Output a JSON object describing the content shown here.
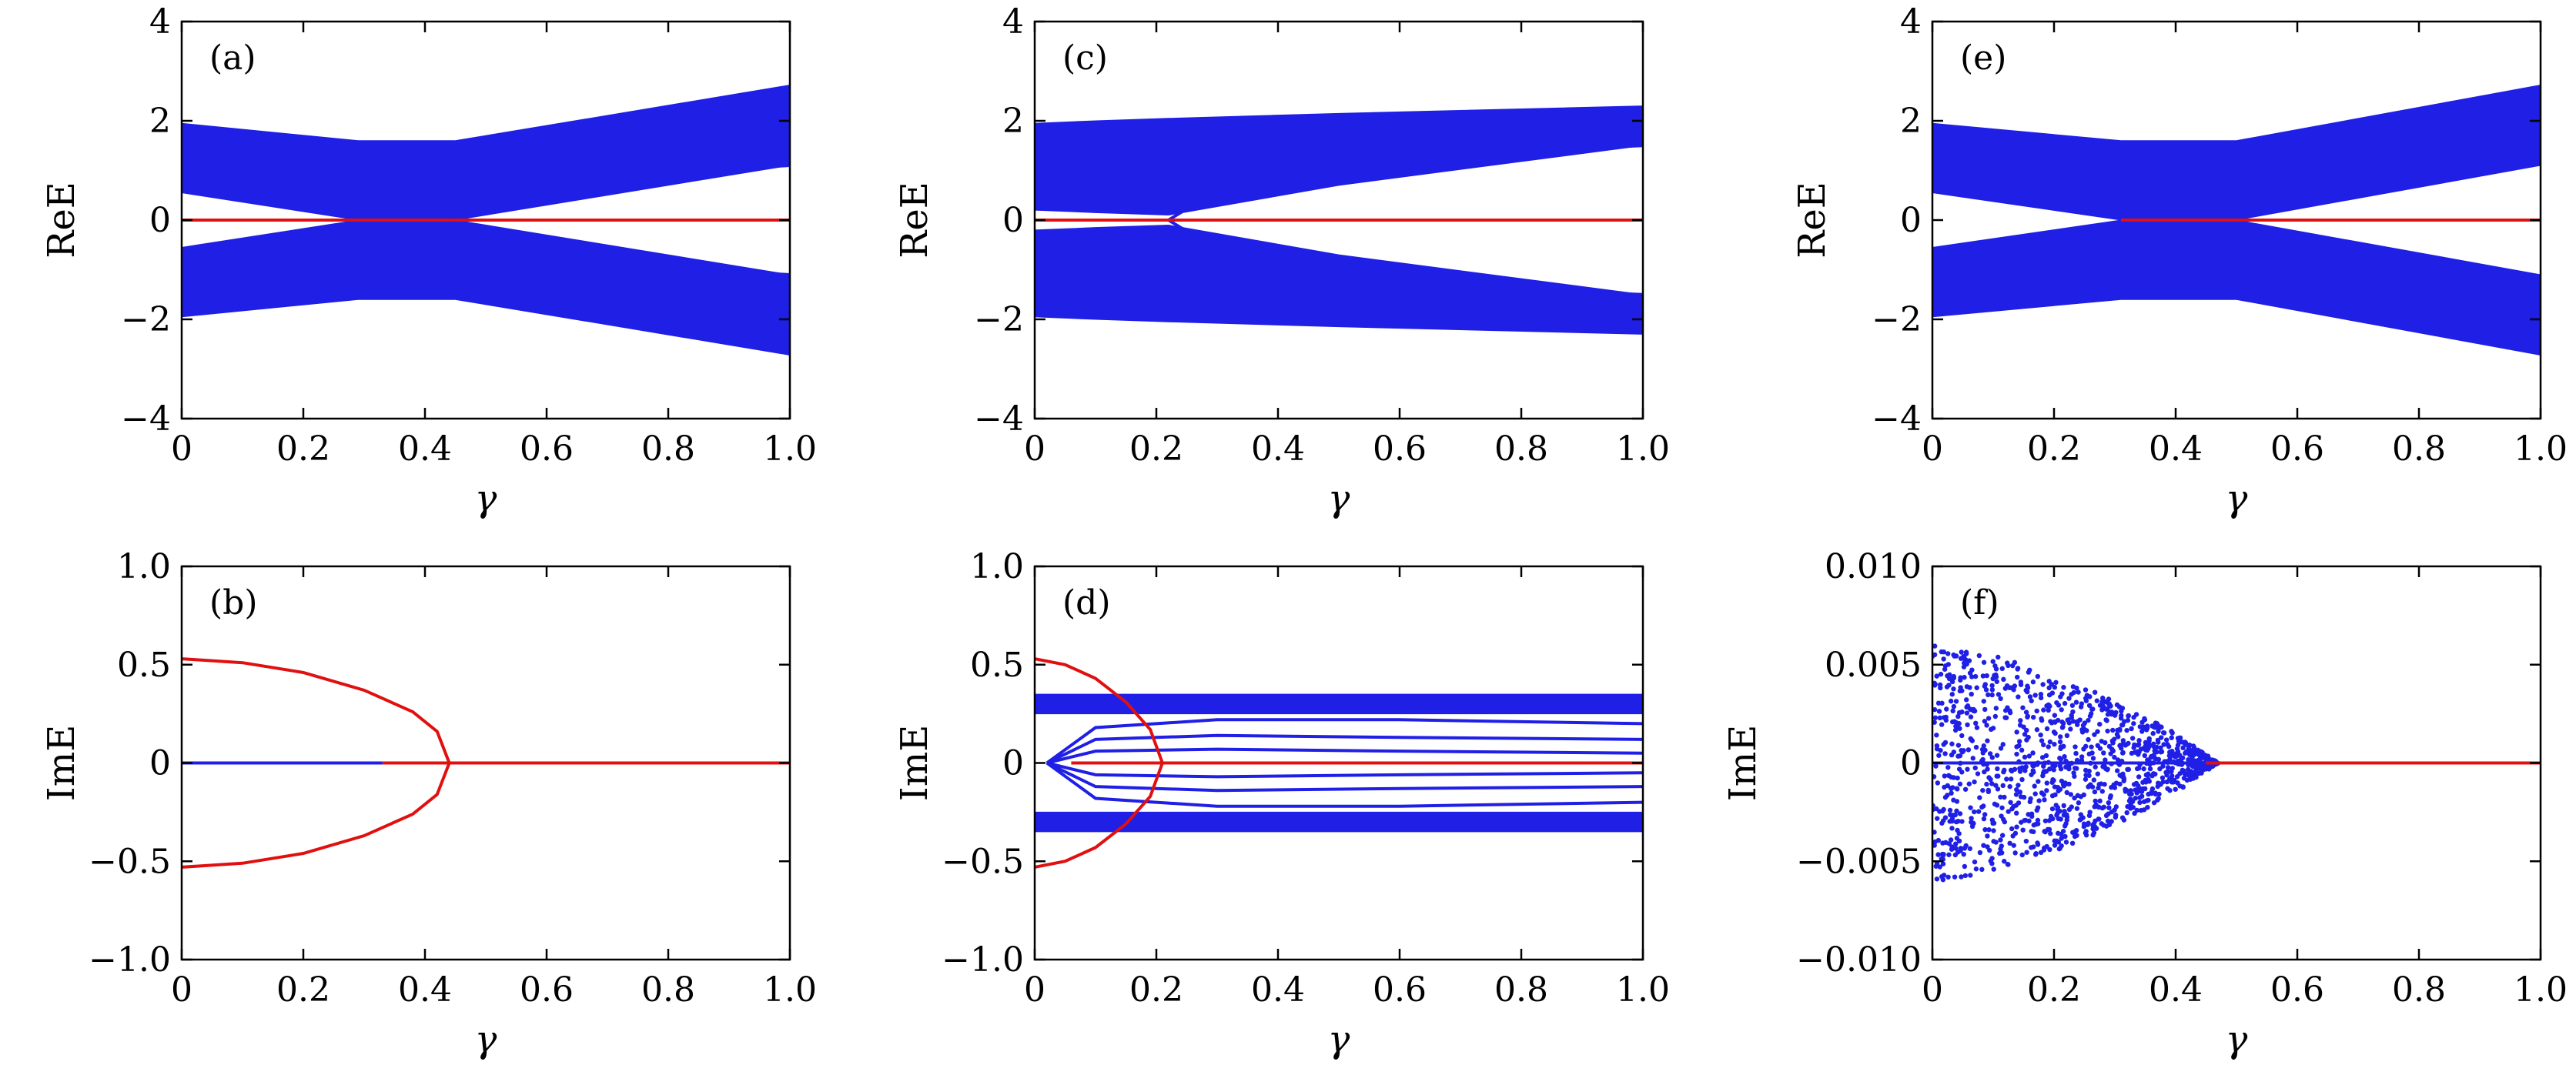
{
  "colors": {
    "band": "#1f1fe6",
    "edge": "#e01010",
    "axis": "#000000"
  },
  "chart_data": [
    {
      "id": "a",
      "type": "line",
      "panel_label": "(a)",
      "xlabel": "γ",
      "ylabel": "ReE",
      "xlim": [
        0,
        1.0
      ],
      "ylim": [
        -4,
        4
      ],
      "xticks": [
        "0",
        "0.2",
        "0.4",
        "0.6",
        "0.8",
        "1.0"
      ],
      "yticks": [
        "4",
        "2",
        "0",
        "−2",
        "−4"
      ],
      "series": [
        {
          "kind": "band",
          "color": "blue",
          "x": [
            0,
            0.29,
            0.45,
            1.0
          ],
          "upper": [
            1.95,
            1.6,
            1.6,
            2.72
          ],
          "lower": [
            0.55,
            0.0,
            0.0,
            1.1
          ]
        },
        {
          "kind": "band",
          "color": "blue",
          "x": [
            0,
            0.29,
            0.45,
            1.0
          ],
          "upper": [
            -0.55,
            0.0,
            0.0,
            -1.1
          ],
          "lower": [
            -1.95,
            -1.6,
            -1.6,
            -2.72
          ]
        },
        {
          "kind": "line",
          "color": "blue",
          "x": [
            0.44,
            0.5,
            0.7,
            1.0
          ],
          "y": [
            0,
            0.55,
            0.9,
            1.1
          ]
        },
        {
          "kind": "line",
          "color": "blue",
          "x": [
            0.44,
            0.5,
            0.7,
            1.0
          ],
          "y": [
            0,
            -0.55,
            -0.9,
            -1.1
          ]
        },
        {
          "kind": "line",
          "color": "red",
          "x": [
            0,
            1.0
          ],
          "y": [
            0,
            0
          ]
        }
      ]
    },
    {
      "id": "c",
      "type": "line",
      "panel_label": "(c)",
      "xlabel": "γ",
      "ylabel": "ReE",
      "xlim": [
        0,
        1.0
      ],
      "ylim": [
        -4,
        4
      ],
      "xticks": [
        "0",
        "0.2",
        "0.4",
        "0.6",
        "0.8",
        "1.0"
      ],
      "yticks": [
        "4",
        "2",
        "0",
        "−2",
        "−4"
      ],
      "series": [
        {
          "kind": "band",
          "color": "blue",
          "x": [
            0,
            0.1,
            0.22,
            0.5,
            1.0
          ],
          "upper": [
            1.95,
            2.0,
            2.05,
            2.15,
            2.3
          ],
          "lower": [
            0.2,
            0.15,
            0.1,
            0.7,
            1.5
          ]
        },
        {
          "kind": "band",
          "color": "blue",
          "x": [
            0,
            0.1,
            0.22,
            0.5,
            1.0
          ],
          "upper": [
            -0.2,
            -0.15,
            -0.1,
            -0.7,
            -1.5
          ],
          "lower": [
            -1.95,
            -2.0,
            -2.05,
            -2.15,
            -2.3
          ]
        },
        {
          "kind": "line",
          "color": "blue",
          "x": [
            0.22,
            0.3,
            0.5,
            0.8,
            1.0
          ],
          "y": [
            0,
            0.6,
            1.1,
            1.4,
            1.5
          ]
        },
        {
          "kind": "line",
          "color": "blue",
          "x": [
            0.22,
            0.3,
            0.5,
            0.8,
            1.0
          ],
          "y": [
            0,
            -0.6,
            -1.1,
            -1.4,
            -1.5
          ]
        },
        {
          "kind": "line",
          "color": "red",
          "x": [
            0,
            1.0
          ],
          "y": [
            0,
            0
          ]
        }
      ]
    },
    {
      "id": "e",
      "type": "line",
      "panel_label": "(e)",
      "xlabel": "γ",
      "ylabel": "ReE",
      "xlim": [
        0,
        1.0
      ],
      "ylim": [
        -4,
        4
      ],
      "xticks": [
        "0",
        "0.2",
        "0.4",
        "0.6",
        "0.8",
        "1.0"
      ],
      "yticks": [
        "4",
        "2",
        "0",
        "−2",
        "−4"
      ],
      "series": [
        {
          "kind": "band",
          "color": "blue",
          "x": [
            0,
            0.31,
            0.5,
            1.0
          ],
          "upper": [
            1.95,
            1.6,
            1.6,
            2.72
          ],
          "lower": [
            0.55,
            0.0,
            0.0,
            1.1
          ]
        },
        {
          "kind": "band",
          "color": "blue",
          "x": [
            0,
            0.31,
            0.5,
            1.0
          ],
          "upper": [
            -0.55,
            0.0,
            0.0,
            -1.1
          ],
          "lower": [
            -1.95,
            -1.6,
            -1.6,
            -2.72
          ]
        },
        {
          "kind": "line",
          "color": "red",
          "x": [
            0.31,
            1.0
          ],
          "y": [
            0,
            0
          ]
        }
      ]
    },
    {
      "id": "b",
      "type": "scatter",
      "panel_label": "(b)",
      "xlabel": "γ",
      "ylabel": "ImE",
      "xlim": [
        0,
        1.0
      ],
      "ylim": [
        -1.0,
        1.0
      ],
      "xticks": [
        "0",
        "0.2",
        "0.4",
        "0.6",
        "0.8",
        "1.0"
      ],
      "yticks": [
        "1.0",
        "0.5",
        "0",
        "−0.5",
        "−1.0"
      ],
      "series": [
        {
          "kind": "line",
          "color": "red",
          "x": [
            0,
            0.1,
            0.2,
            0.3,
            0.38,
            0.42,
            0.44
          ],
          "y": [
            0.53,
            0.51,
            0.46,
            0.37,
            0.26,
            0.16,
            0.0
          ]
        },
        {
          "kind": "line",
          "color": "red",
          "x": [
            0,
            0.1,
            0.2,
            0.3,
            0.38,
            0.42,
            0.44
          ],
          "y": [
            -0.53,
            -0.51,
            -0.46,
            -0.37,
            -0.26,
            -0.16,
            0.0
          ]
        },
        {
          "kind": "line",
          "color": "red",
          "x": [
            0.33,
            1.0
          ],
          "y": [
            0,
            0
          ]
        },
        {
          "kind": "line",
          "color": "blue",
          "x": [
            0,
            0.33
          ],
          "y": [
            0,
            0
          ]
        }
      ]
    },
    {
      "id": "d",
      "type": "line",
      "panel_label": "(d)",
      "xlabel": "γ",
      "ylabel": "ImE",
      "xlim": [
        0,
        1.0
      ],
      "ylim": [
        -1.0,
        1.0
      ],
      "xticks": [
        "0",
        "0.2",
        "0.4",
        "0.6",
        "0.8",
        "1.0"
      ],
      "yticks": [
        "1.0",
        "0.5",
        "0",
        "−0.5",
        "−1.0"
      ],
      "series": [
        {
          "kind": "band",
          "color": "blue",
          "x": [
            0,
            1.0
          ],
          "upper": [
            0.35,
            0.35
          ],
          "lower": [
            0.25,
            0.25
          ]
        },
        {
          "kind": "band",
          "color": "blue",
          "x": [
            0,
            1.0
          ],
          "upper": [
            -0.25,
            -0.25
          ],
          "lower": [
            -0.35,
            -0.35
          ]
        },
        {
          "kind": "line",
          "color": "blue",
          "x": [
            0.02,
            0.1,
            0.3,
            0.6,
            1.0
          ],
          "y": [
            0,
            0.18,
            0.22,
            0.22,
            0.2
          ]
        },
        {
          "kind": "line",
          "color": "blue",
          "x": [
            0.02,
            0.1,
            0.3,
            0.6,
            1.0
          ],
          "y": [
            0,
            0.12,
            0.14,
            0.13,
            0.12
          ]
        },
        {
          "kind": "line",
          "color": "blue",
          "x": [
            0.02,
            0.1,
            0.3,
            0.6,
            1.0
          ],
          "y": [
            0,
            0.06,
            0.07,
            0.06,
            0.05
          ]
        },
        {
          "kind": "line",
          "color": "blue",
          "x": [
            0.02,
            0.1,
            0.3,
            0.6,
            1.0
          ],
          "y": [
            0,
            -0.06,
            -0.07,
            -0.06,
            -0.05
          ]
        },
        {
          "kind": "line",
          "color": "blue",
          "x": [
            0.02,
            0.1,
            0.3,
            0.6,
            1.0
          ],
          "y": [
            0,
            -0.12,
            -0.14,
            -0.13,
            -0.12
          ]
        },
        {
          "kind": "line",
          "color": "blue",
          "x": [
            0.02,
            0.1,
            0.3,
            0.6,
            1.0
          ],
          "y": [
            0,
            -0.18,
            -0.22,
            -0.22,
            -0.2
          ]
        },
        {
          "kind": "line",
          "color": "red",
          "x": [
            0,
            0.05,
            0.1,
            0.15,
            0.19,
            0.21
          ],
          "y": [
            0.53,
            0.5,
            0.43,
            0.31,
            0.17,
            0.0
          ]
        },
        {
          "kind": "line",
          "color": "red",
          "x": [
            0,
            0.05,
            0.1,
            0.15,
            0.19,
            0.21
          ],
          "y": [
            -0.53,
            -0.5,
            -0.43,
            -0.31,
            -0.17,
            0.0
          ]
        },
        {
          "kind": "line",
          "color": "red",
          "x": [
            0.06,
            1.0
          ],
          "y": [
            0,
            0
          ]
        }
      ]
    },
    {
      "id": "f",
      "type": "scatter",
      "panel_label": "(f)",
      "xlabel": "γ",
      "ylabel": "ImE",
      "xlim": [
        0,
        1.0
      ],
      "ylim": [
        -0.01,
        0.01
      ],
      "xticks": [
        "0",
        "0.2",
        "0.4",
        "0.6",
        "0.8",
        "1.0"
      ],
      "yticks": [
        "0.010",
        "0.005",
        "0",
        "−0.005",
        "−0.010"
      ],
      "series": [
        {
          "kind": "wedge",
          "color": "blue",
          "x": [
            0,
            0.02,
            0.1,
            0.2,
            0.3,
            0.4,
            0.47
          ],
          "upper": [
            0.006,
            0.006,
            0.0055,
            0.0045,
            0.0032,
            0.0015,
            0.0
          ],
          "lower": [
            -0.006,
            -0.006,
            -0.0055,
            -0.0045,
            -0.0032,
            -0.0015,
            0.0
          ]
        },
        {
          "kind": "line",
          "color": "blue",
          "x": [
            0,
            0.47
          ],
          "y": [
            0,
            0
          ]
        },
        {
          "kind": "line",
          "color": "red",
          "x": [
            0.45,
            1.0
          ],
          "y": [
            0,
            0
          ]
        }
      ]
    }
  ]
}
